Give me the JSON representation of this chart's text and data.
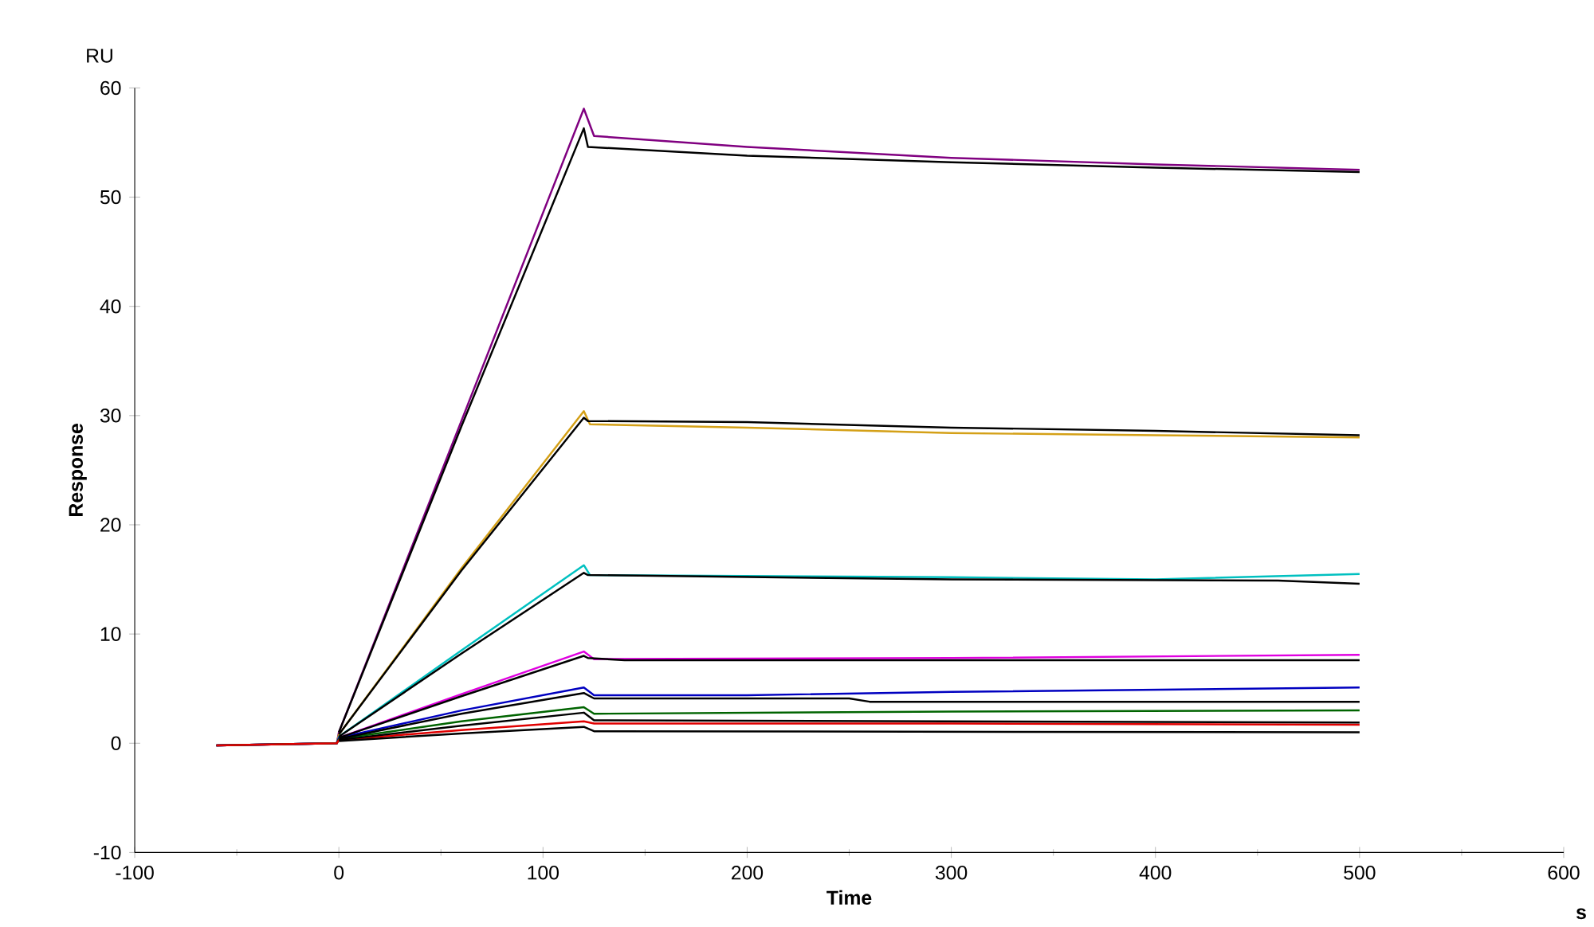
{
  "chart_data": {
    "type": "line",
    "xlabel": "Time",
    "ylabel": "Response",
    "annotations": [
      "RU",
      "s"
    ],
    "xlim": [
      -100,
      600
    ],
    "xticks": [
      -100,
      0,
      100,
      200,
      300,
      400,
      500,
      600
    ],
    "ylim": [
      -10,
      60
    ],
    "yticks": [
      -10,
      0,
      10,
      20,
      30,
      40,
      50,
      60
    ],
    "grid": false,
    "legend": false,
    "marker": "none",
    "line_style": "solid",
    "series": [
      {
        "color": "#800080",
        "x": [
          -60,
          -1,
          0,
          60,
          120,
          125,
          200,
          300,
          400,
          500
        ],
        "values": [
          -0.2,
          0,
          1,
          29.5,
          58.1,
          55.6,
          54.6,
          53.6,
          53,
          52.5
        ]
      },
      {
        "color": "#d4a017",
        "x": [
          -60,
          -1,
          0,
          60,
          120,
          123,
          200,
          300,
          400,
          500
        ],
        "values": [
          -0.2,
          0,
          0.8,
          16,
          30.4,
          29.2,
          28.9,
          28.4,
          28.2,
          28
        ]
      },
      {
        "color": "#00c0c0",
        "x": [
          -60,
          -1,
          0,
          60,
          120,
          123,
          300,
          400,
          500
        ],
        "values": [
          -0.2,
          0,
          0.6,
          8.5,
          16.3,
          15.4,
          15.2,
          15,
          15.5
        ]
      },
      {
        "color": "#e000e0",
        "x": [
          -60,
          -1,
          0,
          60,
          120,
          125,
          300,
          500
        ],
        "values": [
          -0.2,
          0,
          0.5,
          4.5,
          8.4,
          7.7,
          7.8,
          8.1
        ]
      },
      {
        "color": "#0000c0",
        "x": [
          -60,
          -1,
          0,
          60,
          120,
          125,
          200,
          300,
          500
        ],
        "values": [
          -0.2,
          0,
          0.5,
          3,
          5.1,
          4.4,
          4.4,
          4.7,
          5.1
        ]
      },
      {
        "color": "#006400",
        "x": [
          -60,
          -1,
          0,
          60,
          120,
          125,
          300,
          500
        ],
        "values": [
          -0.2,
          0,
          0.4,
          2,
          3.3,
          2.7,
          2.9,
          3
        ]
      },
      {
        "color": "#e00000",
        "x": [
          -60,
          -1,
          0,
          60,
          120,
          125,
          300,
          500
        ],
        "values": [
          -0.2,
          0,
          0.3,
          1.2,
          2,
          1.8,
          1.8,
          1.7
        ]
      },
      {
        "color": "#000000",
        "x": [
          0,
          60,
          120,
          122,
          200,
          300,
          400,
          500
        ],
        "values": [
          1,
          29,
          56.3,
          54.6,
          53.8,
          53.2,
          52.7,
          52.3
        ]
      },
      {
        "color": "#000000",
        "x": [
          0,
          60,
          120,
          122,
          200,
          300,
          400,
          500
        ],
        "values": [
          0.8,
          15.8,
          29.8,
          29.5,
          29.4,
          28.9,
          28.6,
          28.2
        ]
      },
      {
        "color": "#000000",
        "x": [
          0,
          60,
          120,
          122,
          300,
          460,
          500
        ],
        "values": [
          0.6,
          8.2,
          15.6,
          15.4,
          15,
          14.9,
          14.6
        ]
      },
      {
        "color": "#000000",
        "x": [
          0,
          60,
          120,
          122,
          140,
          500
        ],
        "values": [
          0.5,
          4.3,
          8,
          7.8,
          7.6,
          7.6
        ]
      },
      {
        "color": "#000000",
        "x": [
          0,
          60,
          120,
          125,
          250,
          260,
          500
        ],
        "values": [
          0.4,
          2.7,
          4.6,
          4.1,
          4.1,
          3.8,
          3.8
        ]
      },
      {
        "color": "#000000",
        "x": [
          0,
          60,
          120,
          125,
          500
        ],
        "values": [
          0.3,
          1.6,
          2.8,
          2.1,
          1.9
        ]
      },
      {
        "color": "#000000",
        "x": [
          0,
          60,
          120,
          125,
          500
        ],
        "values": [
          0.2,
          0.9,
          1.5,
          1.1,
          1
        ]
      }
    ]
  }
}
